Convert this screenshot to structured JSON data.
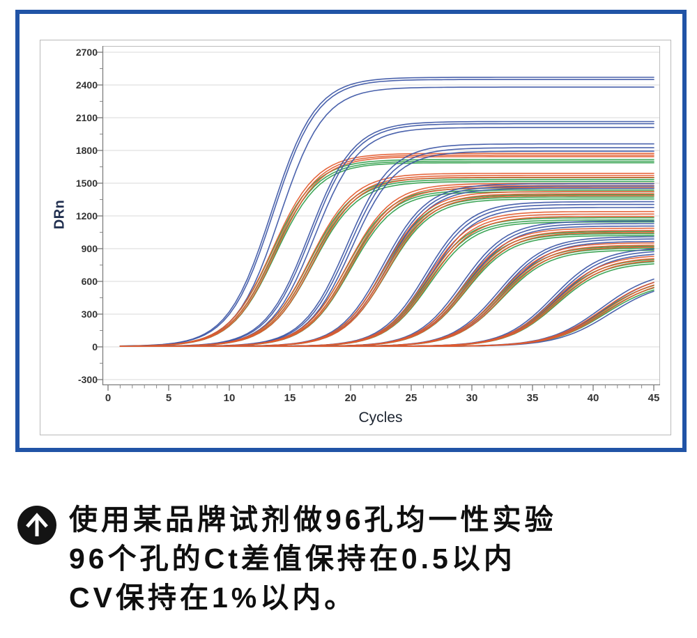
{
  "caption": {
    "icon": "arrow-up-circle",
    "lines": [
      "使用某品牌试剂做96孔均一性实验",
      "96个孔的Ct差值保持在0.5以内",
      "CV保持在1%以内。"
    ]
  },
  "chart_data": {
    "type": "line",
    "title": "",
    "xlabel": "Cycles",
    "ylabel": "DRn",
    "xlim": [
      0,
      45
    ],
    "ylim": [
      -300,
      2700
    ],
    "xticks": [
      0,
      5,
      10,
      15,
      20,
      25,
      30,
      35,
      40,
      45
    ],
    "yticks": [
      2700,
      2400,
      2100,
      1800,
      1500,
      1200,
      900,
      600,
      300,
      0,
      -300
    ],
    "x_minor_step": 1,
    "y_minor_step": 150,
    "grid": "horizontal",
    "legend": "none",
    "description": "qPCR amplification curves: 96-well uniformity test, sigmoid curves in 9 take-off groups of blue/orange/green replicates, baseline at DRn 0 from cycle 1 to 45",
    "colors": {
      "blue": "#3b55a5",
      "orange": "#e35a2e",
      "green": "#2f9e4a"
    },
    "curve_model": "plateau / (1 + exp(-k*(cycle - ct)))",
    "baseline_value": 5,
    "x_start": 1,
    "x_end": 45,
    "clusters": [
      {
        "ct": 13.6,
        "k": 0.55,
        "curves": [
          {
            "color": "green",
            "plateau": 1712,
            "dct": -0.12
          },
          {
            "color": "green",
            "plateau": 1696,
            "dct": 0.05
          },
          {
            "color": "green",
            "plateau": 1682,
            "dct": 0.2
          },
          {
            "color": "blue",
            "plateau": 2465,
            "dct": -0.12
          },
          {
            "color": "blue",
            "plateau": 2445,
            "dct": 0.02
          },
          {
            "color": "blue",
            "plateau": 2375,
            "dct": 0.55
          },
          {
            "color": "orange",
            "plateau": 1768,
            "dct": -0.06
          },
          {
            "color": "orange",
            "plateau": 1752,
            "dct": 0.1
          },
          {
            "color": "orange",
            "plateau": 1738,
            "dct": 0.24
          }
        ]
      },
      {
        "ct": 16.7,
        "k": 0.55,
        "curves": [
          {
            "color": "green",
            "plateau": 1545,
            "dct": -0.1
          },
          {
            "color": "green",
            "plateau": 1528,
            "dct": 0.06
          },
          {
            "color": "green",
            "plateau": 1510,
            "dct": 0.2
          },
          {
            "color": "blue",
            "plateau": 2060,
            "dct": -0.1
          },
          {
            "color": "blue",
            "plateau": 2040,
            "dct": 0.05
          },
          {
            "color": "blue",
            "plateau": 2005,
            "dct": 0.32
          },
          {
            "color": "orange",
            "plateau": 1585,
            "dct": -0.06
          },
          {
            "color": "orange",
            "plateau": 1565,
            "dct": 0.1
          },
          {
            "color": "orange",
            "plateau": 1548,
            "dct": 0.24
          }
        ]
      },
      {
        "ct": 19.8,
        "k": 0.55,
        "curves": [
          {
            "color": "green",
            "plateau": 1452,
            "dct": -0.12
          },
          {
            "color": "green",
            "plateau": 1432,
            "dct": 0.05
          },
          {
            "color": "green",
            "plateau": 1415,
            "dct": 0.2
          },
          {
            "color": "blue",
            "plateau": 1855,
            "dct": -0.1
          },
          {
            "color": "blue",
            "plateau": 1820,
            "dct": 0.05
          },
          {
            "color": "blue",
            "plateau": 1788,
            "dct": 0.26
          },
          {
            "color": "orange",
            "plateau": 1492,
            "dct": -0.05
          },
          {
            "color": "orange",
            "plateau": 1472,
            "dct": 0.1
          },
          {
            "color": "orange",
            "plateau": 1455,
            "dct": 0.22
          }
        ]
      },
      {
        "ct": 22.8,
        "k": 0.55,
        "curves": [
          {
            "color": "green",
            "plateau": 1388,
            "dct": -0.1
          },
          {
            "color": "green",
            "plateau": 1368,
            "dct": 0.05
          },
          {
            "color": "green",
            "plateau": 1350,
            "dct": 0.18
          },
          {
            "color": "blue",
            "plateau": 1490,
            "dct": -0.12
          },
          {
            "color": "blue",
            "plateau": 1468,
            "dct": 0.03
          },
          {
            "color": "blue",
            "plateau": 1448,
            "dct": 0.2
          },
          {
            "color": "orange",
            "plateau": 1418,
            "dct": -0.06
          },
          {
            "color": "orange",
            "plateau": 1398,
            "dct": 0.1
          },
          {
            "color": "orange",
            "plateau": 1380,
            "dct": 0.22
          }
        ]
      },
      {
        "ct": 26.3,
        "k": 0.55,
        "curves": [
          {
            "color": "green",
            "plateau": 1178,
            "dct": -0.1
          },
          {
            "color": "green",
            "plateau": 1158,
            "dct": 0.05
          },
          {
            "color": "green",
            "plateau": 1140,
            "dct": 0.2
          },
          {
            "color": "blue",
            "plateau": 1325,
            "dct": -0.1
          },
          {
            "color": "blue",
            "plateau": 1300,
            "dct": 0.05
          },
          {
            "color": "blue",
            "plateau": 1272,
            "dct": 0.22
          },
          {
            "color": "orange",
            "plateau": 1235,
            "dct": -0.05
          },
          {
            "color": "orange",
            "plateau": 1212,
            "dct": 0.1
          },
          {
            "color": "orange",
            "plateau": 1190,
            "dct": 0.24
          }
        ]
      },
      {
        "ct": 29.3,
        "k": 0.54,
        "curves": [
          {
            "color": "green",
            "plateau": 1052,
            "dct": -0.1
          },
          {
            "color": "green",
            "plateau": 1032,
            "dct": 0.06
          },
          {
            "color": "green",
            "plateau": 1015,
            "dct": 0.2
          },
          {
            "color": "blue",
            "plateau": 1148,
            "dct": -0.12
          },
          {
            "color": "blue",
            "plateau": 1125,
            "dct": 0.04
          },
          {
            "color": "blue",
            "plateau": 1102,
            "dct": 0.2
          },
          {
            "color": "orange",
            "plateau": 1082,
            "dct": -0.06
          },
          {
            "color": "orange",
            "plateau": 1062,
            "dct": 0.1
          },
          {
            "color": "orange",
            "plateau": 1042,
            "dct": 0.22
          }
        ]
      },
      {
        "ct": 32.3,
        "k": 0.52,
        "curves": [
          {
            "color": "green",
            "plateau": 918,
            "dct": -0.1
          },
          {
            "color": "green",
            "plateau": 900,
            "dct": 0.05
          },
          {
            "color": "green",
            "plateau": 882,
            "dct": 0.2
          },
          {
            "color": "blue",
            "plateau": 1005,
            "dct": -0.1
          },
          {
            "color": "blue",
            "plateau": 985,
            "dct": 0.05
          },
          {
            "color": "blue",
            "plateau": 962,
            "dct": 0.22
          },
          {
            "color": "orange",
            "plateau": 948,
            "dct": -0.05
          },
          {
            "color": "orange",
            "plateau": 928,
            "dct": 0.1
          },
          {
            "color": "orange",
            "plateau": 910,
            "dct": 0.24
          }
        ]
      },
      {
        "ct": 36.8,
        "k": 0.5,
        "curves": [
          {
            "color": "green",
            "plateau": 808,
            "dct": -0.1
          },
          {
            "color": "green",
            "plateau": 788,
            "dct": 0.06
          },
          {
            "color": "green",
            "plateau": 770,
            "dct": 0.2
          },
          {
            "color": "blue",
            "plateau": 905,
            "dct": -0.12
          },
          {
            "color": "blue",
            "plateau": 882,
            "dct": 0.04
          },
          {
            "color": "blue",
            "plateau": 858,
            "dct": 0.2
          },
          {
            "color": "orange",
            "plateau": 838,
            "dct": -0.06
          },
          {
            "color": "orange",
            "plateau": 818,
            "dct": 0.1
          },
          {
            "color": "orange",
            "plateau": 798,
            "dct": 0.22
          }
        ]
      },
      {
        "ct": 40.8,
        "k": 0.46,
        "curves": [
          {
            "color": "green",
            "plateau": 635,
            "dct": -0.1
          },
          {
            "color": "green",
            "plateau": 615,
            "dct": 0.05
          },
          {
            "color": "green",
            "plateau": 598,
            "dct": 0.2
          },
          {
            "color": "blue",
            "plateau": 700,
            "dct": -0.12
          },
          {
            "color": "blue",
            "plateau": 672,
            "dct": 0.05
          },
          {
            "color": "blue",
            "plateau": 600,
            "dct": 0.6
          },
          {
            "color": "orange",
            "plateau": 668,
            "dct": -0.05
          },
          {
            "color": "orange",
            "plateau": 648,
            "dct": 0.12
          },
          {
            "color": "orange",
            "plateau": 628,
            "dct": 0.25
          }
        ]
      }
    ]
  }
}
